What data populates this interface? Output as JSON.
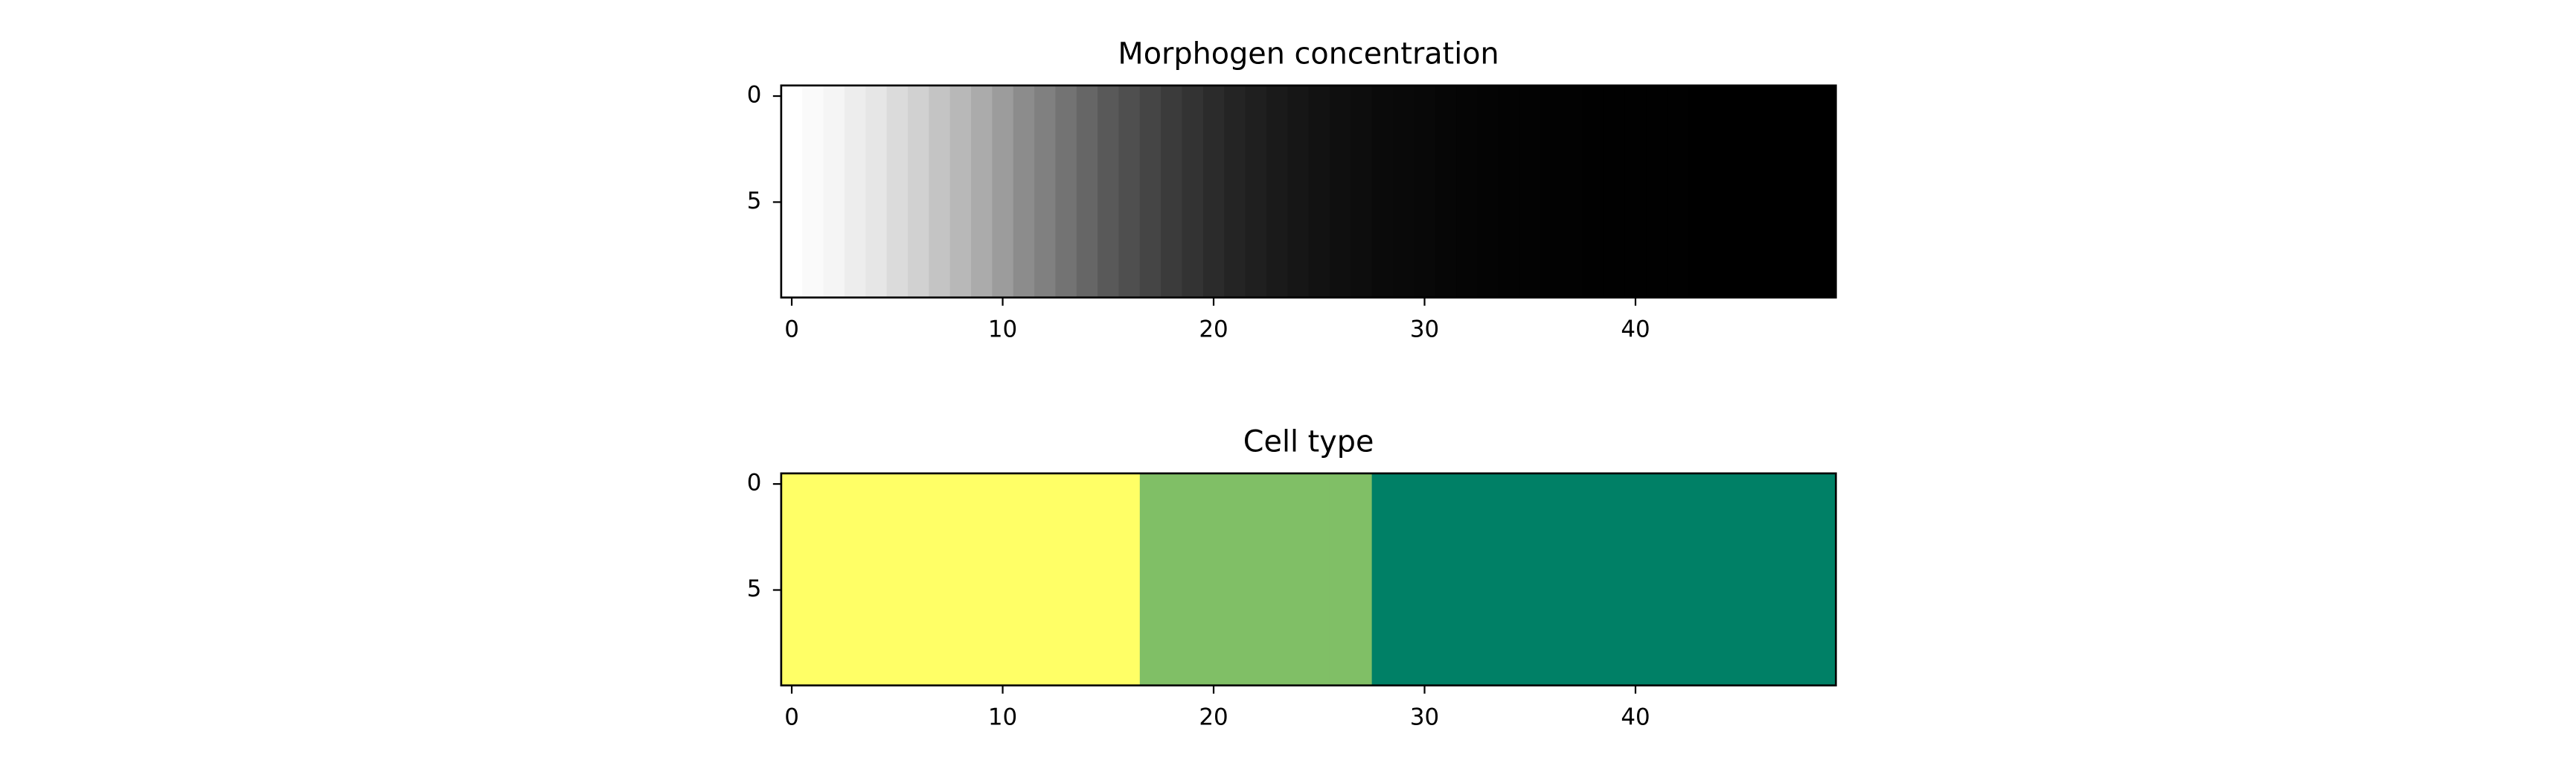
{
  "chart_data": [
    {
      "type": "heatmap",
      "title": "Morphogen concentration",
      "x": [
        0,
        1,
        2,
        3,
        4,
        5,
        6,
        7,
        8,
        9,
        10,
        11,
        12,
        13,
        14,
        15,
        16,
        17,
        18,
        19,
        20,
        21,
        22,
        23,
        24,
        25,
        26,
        27,
        28,
        29,
        30,
        31,
        32,
        33,
        34,
        35,
        36,
        37,
        38,
        39,
        40,
        41,
        42,
        43,
        44,
        45,
        46,
        47,
        48,
        49
      ],
      "values": [
        1.0,
        0.98,
        0.96,
        0.93,
        0.9,
        0.86,
        0.82,
        0.77,
        0.72,
        0.67,
        0.61,
        0.55,
        0.5,
        0.45,
        0.4,
        0.35,
        0.31,
        0.27,
        0.23,
        0.2,
        0.17,
        0.14,
        0.12,
        0.1,
        0.085,
        0.07,
        0.06,
        0.05,
        0.04,
        0.035,
        0.03,
        0.025,
        0.02,
        0.016,
        0.013,
        0.01,
        0.008,
        0.006,
        0.005,
        0.004,
        0.003,
        0.002,
        0.002,
        0.001,
        0.001,
        0.001,
        0.0,
        0.0,
        0.0,
        0.0
      ],
      "colors": [
        "#000000",
        "#ffffff"
      ],
      "vlim": [
        0,
        1
      ],
      "xlim": [
        -0.5,
        49.5
      ],
      "ylim": [
        9.5,
        -0.5
      ],
      "xticks": [
        0,
        10,
        20,
        30,
        40
      ],
      "yticks": [
        0,
        5
      ]
    },
    {
      "type": "heatmap",
      "title": "Cell type",
      "x": [
        0,
        1,
        2,
        3,
        4,
        5,
        6,
        7,
        8,
        9,
        10,
        11,
        12,
        13,
        14,
        15,
        16,
        17,
        18,
        19,
        20,
        21,
        22,
        23,
        24,
        25,
        26,
        27,
        28,
        29,
        30,
        31,
        32,
        33,
        34,
        35,
        36,
        37,
        38,
        39,
        40,
        41,
        42,
        43,
        44,
        45,
        46,
        47,
        48,
        49
      ],
      "values": [
        0,
        0,
        0,
        0,
        0,
        0,
        0,
        0,
        0,
        0,
        0,
        0,
        0,
        0,
        0,
        0,
        0,
        1,
        1,
        1,
        1,
        1,
        1,
        1,
        1,
        1,
        1,
        1,
        2,
        2,
        2,
        2,
        2,
        2,
        2,
        2,
        2,
        2,
        2,
        2,
        2,
        2,
        2,
        2,
        2,
        2,
        2,
        2,
        2,
        2
      ],
      "colors": [
        "#ffff66",
        "#80bf66",
        "#008066"
      ],
      "vlim": [
        0,
        2
      ],
      "xlim": [
        -0.5,
        49.5
      ],
      "ylim": [
        9.5,
        -0.5
      ],
      "xticks": [
        0,
        10,
        20,
        30,
        40
      ],
      "yticks": [
        0,
        5
      ]
    }
  ]
}
